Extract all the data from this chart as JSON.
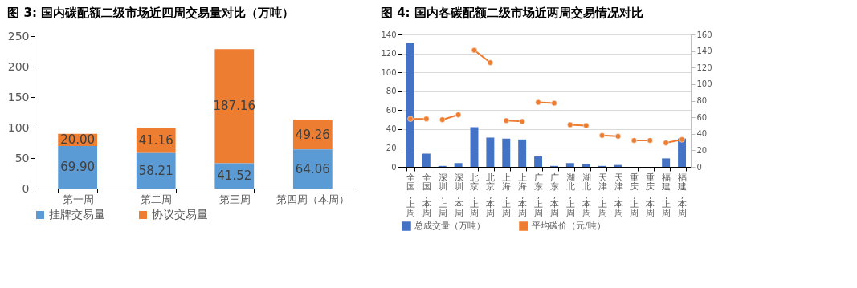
{
  "chart_data": [
    {
      "type": "bar",
      "title": "图 3:  国内碳配额二级市场近四周交易量对比（万吨）",
      "categories": [
        "第一周",
        "第二周",
        "第三周",
        "第四周（本周）"
      ],
      "stacked": true,
      "legend": "bottom",
      "ylim": [
        0,
        250
      ],
      "yticks": [
        0,
        50,
        100,
        150,
        200,
        250
      ],
      "series": [
        {
          "name": "挂牌交易量",
          "color": "#5b9bd5",
          "values": [
            69.9,
            58.21,
            41.52,
            64.06
          ],
          "value_labels": [
            "69.90",
            "58.21",
            "41.52",
            "64.06"
          ]
        },
        {
          "name": "协议交易量",
          "color": "#ed7d31",
          "values": [
            20.0,
            41.16,
            187.16,
            49.26
          ],
          "value_labels": [
            "20.00",
            "41.16",
            "187.16",
            "49.26"
          ]
        }
      ]
    },
    {
      "type": "bar",
      "title": "图 4:  国内各碳配额二级市场近两周交易情况对比",
      "categories": [
        "全国,上周",
        "全国,本周",
        "深圳,上周",
        "深圳,本周",
        "北京,上周",
        "北京,本周",
        "上海,上周",
        "上海,本周",
        "广东,上周",
        "广东,本周",
        "湖北,上周",
        "湖北,本周",
        "天津,上周",
        "天津,本周",
        "重庆,上周",
        "重庆,本周",
        "福建,上周",
        "福建,本周"
      ],
      "legend": "bottom",
      "grid": "y",
      "marker": "circle",
      "ylim": [
        0,
        140
      ],
      "yticks": [
        0,
        20,
        40,
        60,
        80,
        100,
        120,
        140
      ],
      "y2lim": [
        0,
        160
      ],
      "y2ticks": [
        0,
        20,
        40,
        60,
        80,
        100,
        120,
        140,
        160
      ],
      "series": [
        {
          "name": "总成交量（万吨）",
          "color": "#4472c4",
          "values": [
            131,
            14,
            1,
            4,
            42,
            31,
            30,
            29,
            11,
            1,
            4,
            3,
            1,
            2,
            0,
            0,
            9,
            30
          ]
        },
        {
          "name": "平均碳价（元/吨）",
          "type": "line",
          "axis": "y2",
          "color": "#ed7d31",
          "x": [
            "全国,上周",
            "全国,本周"
          ],
          "values": [
            58,
            58
          ]
        },
        {
          "type": "line",
          "axis": "y2",
          "color": "#ed7d31",
          "x": [
            "深圳,上周",
            "深圳,本周"
          ],
          "values": [
            57,
            63
          ]
        },
        {
          "type": "line",
          "axis": "y2",
          "color": "#ed7d31",
          "x": [
            "北京,上周",
            "北京,本周"
          ],
          "values": [
            141,
            126
          ]
        },
        {
          "type": "line",
          "axis": "y2",
          "color": "#ed7d31",
          "x": [
            "上海,上周",
            "上海,本周"
          ],
          "values": [
            56,
            55
          ]
        },
        {
          "type": "line",
          "axis": "y2",
          "color": "#ed7d31",
          "x": [
            "广东,上周",
            "广东,本周"
          ],
          "values": [
            78,
            77
          ]
        },
        {
          "type": "line",
          "axis": "y2",
          "color": "#ed7d31",
          "x": [
            "湖北,上周",
            "湖北,本周"
          ],
          "values": [
            51,
            50
          ]
        },
        {
          "type": "line",
          "axis": "y2",
          "color": "#ed7d31",
          "x": [
            "天津,上周",
            "天津,本周"
          ],
          "values": [
            38,
            37
          ]
        },
        {
          "type": "line",
          "axis": "y2",
          "color": "#ed7d31",
          "x": [
            "重庆,上周",
            "重庆,本周"
          ],
          "values": [
            32,
            32
          ]
        },
        {
          "type": "line",
          "axis": "y2",
          "color": "#ed7d31",
          "x": [
            "福建,上周",
            "福建,本周"
          ],
          "values": [
            29,
            33
          ]
        }
      ]
    }
  ]
}
